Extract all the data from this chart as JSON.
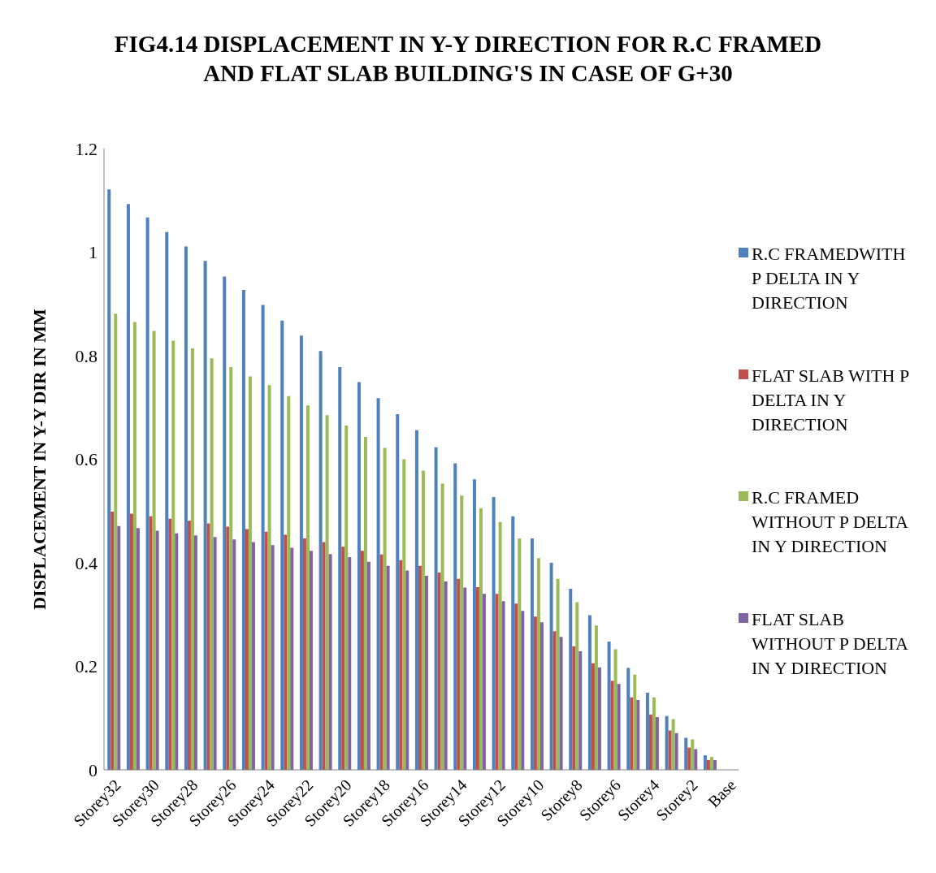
{
  "chart_data": {
    "type": "bar",
    "title": "FIG4.14 DISPLACEMENT IN Y-Y DIRECTION FOR R.C FRAMED AND FLAT SLAB BUILDING'S IN CASE OF G+30",
    "ylabel": "DISPLACEMENT IN Y-Y DIR IN MM",
    "categories": [
      "Storey32",
      null,
      "Storey30",
      null,
      "Storey28",
      null,
      "Storey26",
      null,
      "Storey24",
      null,
      "Storey22",
      null,
      "Storey20",
      null,
      "Storey18",
      null,
      "Storey16",
      null,
      "Storey14",
      null,
      "Storey12",
      null,
      "Storey10",
      null,
      "Storey8",
      null,
      "Storey6",
      null,
      "Storey4",
      null,
      "Storey2",
      null,
      "Base"
    ],
    "series": [
      {
        "name": "R.C FRAMEDWITH P DELTA IN  Y DIRECTION",
        "color": "#4f81bd",
        "values": [
          1.121,
          1.093,
          1.067,
          1.039,
          1.011,
          0.983,
          0.953,
          0.927,
          0.898,
          0.868,
          0.839,
          0.809,
          0.778,
          0.749,
          0.718,
          0.687,
          0.656,
          0.623,
          0.592,
          0.561,
          0.527,
          0.49,
          0.447,
          0.4,
          0.35,
          0.299,
          0.248,
          0.197,
          0.149,
          0.104,
          0.062,
          0.028,
          0
        ]
      },
      {
        "name": "FLAT SLAB WITH P DELTA IN Y DIRECTION",
        "color": "#c0504d",
        "values": [
          0.499,
          0.495,
          0.49,
          0.485,
          0.481,
          0.476,
          0.47,
          0.465,
          0.46,
          0.454,
          0.447,
          0.44,
          0.431,
          0.423,
          0.416,
          0.405,
          0.394,
          0.381,
          0.369,
          0.353,
          0.34,
          0.321,
          0.296,
          0.268,
          0.239,
          0.206,
          0.172,
          0.14,
          0.107,
          0.076,
          0.043,
          0.019,
          0
        ]
      },
      {
        "name": "R.C FRAMED WITHOUT P DELTA IN Y DIRECTION",
        "color": "#9bbb59",
        "values": [
          0.881,
          0.865,
          0.848,
          0.829,
          0.814,
          0.795,
          0.778,
          0.76,
          0.743,
          0.722,
          0.704,
          0.685,
          0.665,
          0.643,
          0.622,
          0.6,
          0.578,
          0.553,
          0.53,
          0.505,
          0.479,
          0.447,
          0.409,
          0.369,
          0.324,
          0.279,
          0.233,
          0.184,
          0.14,
          0.098,
          0.059,
          0.025,
          0
        ]
      },
      {
        "name": "FLAT SLAB WITHOUT P DELTA IN Y DIRECTION",
        "color": "#8064a2",
        "values": [
          0.471,
          0.467,
          0.462,
          0.457,
          0.453,
          0.45,
          0.445,
          0.44,
          0.434,
          0.429,
          0.423,
          0.417,
          0.411,
          0.402,
          0.394,
          0.385,
          0.375,
          0.364,
          0.352,
          0.34,
          0.326,
          0.307,
          0.285,
          0.257,
          0.229,
          0.198,
          0.166,
          0.135,
          0.102,
          0.071,
          0.04,
          0.019,
          0
        ]
      }
    ],
    "ylim": [
      0,
      1.2
    ],
    "yticks": [
      0,
      0.2,
      0.4,
      0.6,
      0.8,
      1,
      1.2
    ],
    "grid": false,
    "legend": "right"
  }
}
